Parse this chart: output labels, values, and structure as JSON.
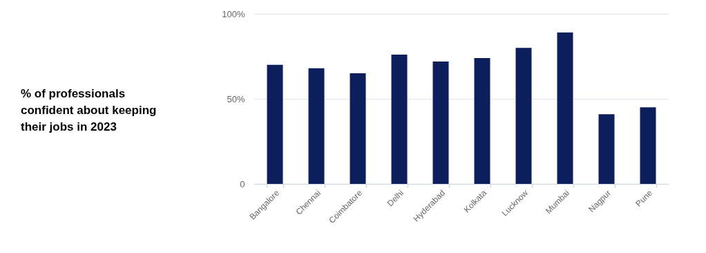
{
  "chart_data": {
    "type": "bar",
    "title": "% of professionals confident about keeping their jobs in 2023",
    "categories": [
      "Bangalore",
      "Chennai",
      "Coimbatore",
      "Delhi",
      "Hyderabad",
      "Kolkata",
      "Lucknow",
      "Mumbai",
      "Nagpur",
      "Pune"
    ],
    "values": [
      70,
      68,
      65,
      76,
      72,
      74,
      80,
      89,
      41,
      45
    ],
    "color": "#0d1e5c",
    "ylim": [
      0,
      100
    ],
    "yticks": [
      {
        "value": 0,
        "label": "0"
      },
      {
        "value": 50,
        "label": "50%"
      },
      {
        "value": 100,
        "label": "100%"
      }
    ],
    "grid": "y"
  }
}
